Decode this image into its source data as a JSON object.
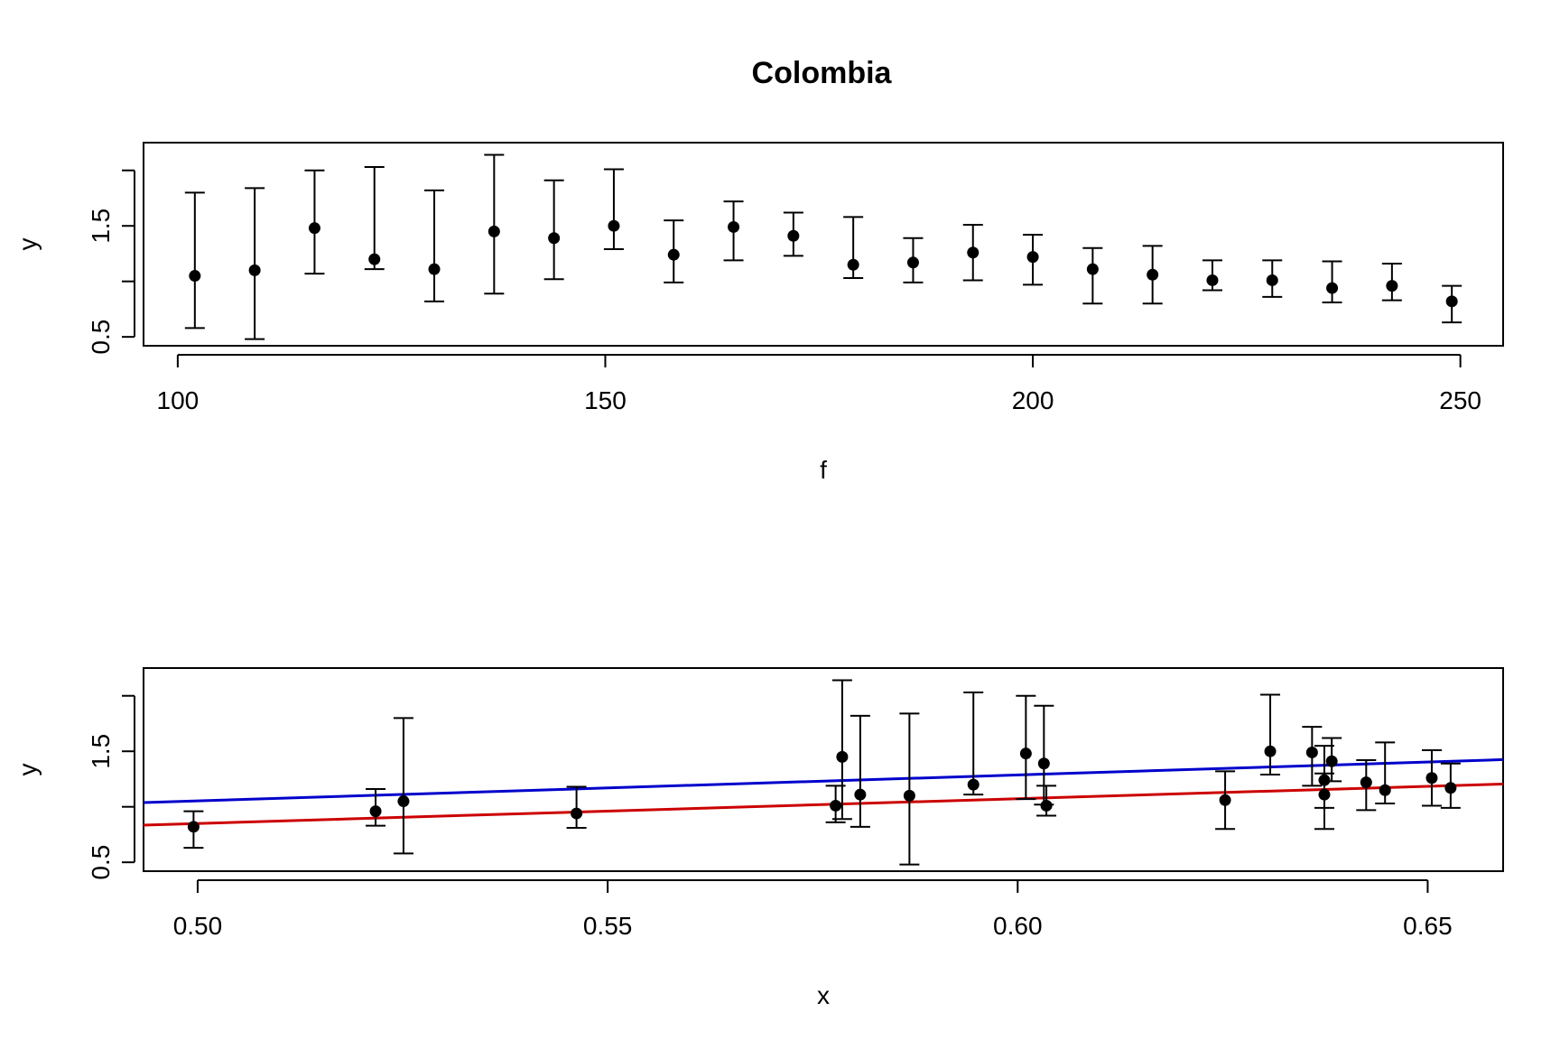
{
  "figure_title": "Colombia",
  "chart_data": [
    {
      "type": "scatter",
      "subtype": "errorbar",
      "xlabel": "f",
      "ylabel": "y",
      "xlim": [
        96,
        255
      ],
      "ylim": [
        0.42,
        2.25
      ],
      "xticks": [
        100,
        150,
        200,
        250
      ],
      "xtick_labels": [
        "100",
        "150",
        "200",
        "250"
      ],
      "yticks": [
        0.5,
        1.0,
        1.5,
        2.0
      ],
      "ytick_labels": [
        "0.5",
        "",
        "1.5",
        ""
      ],
      "grid": false,
      "points": [
        {
          "x": 102,
          "y": 1.05,
          "lo": 0.58,
          "hi": 1.8
        },
        {
          "x": 109,
          "y": 1.1,
          "lo": 0.48,
          "hi": 1.84
        },
        {
          "x": 116,
          "y": 1.48,
          "lo": 1.07,
          "hi": 2.0
        },
        {
          "x": 123,
          "y": 1.2,
          "lo": 1.11,
          "hi": 2.03
        },
        {
          "x": 130,
          "y": 1.11,
          "lo": 0.82,
          "hi": 1.82
        },
        {
          "x": 137,
          "y": 1.45,
          "lo": 0.89,
          "hi": 2.14
        },
        {
          "x": 144,
          "y": 1.39,
          "lo": 1.02,
          "hi": 1.91
        },
        {
          "x": 151,
          "y": 1.5,
          "lo": 1.29,
          "hi": 2.01
        },
        {
          "x": 158,
          "y": 1.24,
          "lo": 0.99,
          "hi": 1.55
        },
        {
          "x": 165,
          "y": 1.49,
          "lo": 1.19,
          "hi": 1.72
        },
        {
          "x": 172,
          "y": 1.41,
          "lo": 1.23,
          "hi": 1.62
        },
        {
          "x": 179,
          "y": 1.15,
          "lo": 1.03,
          "hi": 1.58
        },
        {
          "x": 186,
          "y": 1.17,
          "lo": 0.99,
          "hi": 1.39
        },
        {
          "x": 193,
          "y": 1.26,
          "lo": 1.01,
          "hi": 1.51
        },
        {
          "x": 200,
          "y": 1.22,
          "lo": 0.97,
          "hi": 1.42
        },
        {
          "x": 207,
          "y": 1.11,
          "lo": 0.8,
          "hi": 1.3
        },
        {
          "x": 214,
          "y": 1.06,
          "lo": 0.8,
          "hi": 1.32
        },
        {
          "x": 221,
          "y": 1.01,
          "lo": 0.92,
          "hi": 1.19
        },
        {
          "x": 228,
          "y": 1.01,
          "lo": 0.86,
          "hi": 1.19
        },
        {
          "x": 235,
          "y": 0.94,
          "lo": 0.81,
          "hi": 1.18
        },
        {
          "x": 242,
          "y": 0.96,
          "lo": 0.83,
          "hi": 1.16
        },
        {
          "x": 249,
          "y": 0.82,
          "lo": 0.63,
          "hi": 0.96
        }
      ]
    },
    {
      "type": "scatter",
      "subtype": "errorbar",
      "xlabel": "x",
      "ylabel": "y",
      "xlim": [
        0.4934,
        0.6592
      ],
      "ylim": [
        0.42,
        2.25
      ],
      "xticks": [
        0.5,
        0.55,
        0.6,
        0.65
      ],
      "xtick_labels": [
        "0.50",
        "0.55",
        "0.60",
        "0.65"
      ],
      "yticks": [
        0.5,
        1.0,
        1.5,
        2.0
      ],
      "ytick_labels": [
        "0.5",
        "",
        "1.5",
        ""
      ],
      "grid": false,
      "points": [
        {
          "x": 0.4995,
          "y": 0.82,
          "lo": 0.63,
          "hi": 0.96
        },
        {
          "x": 0.5217,
          "y": 0.96,
          "lo": 0.83,
          "hi": 1.16
        },
        {
          "x": 0.5251,
          "y": 1.05,
          "lo": 0.58,
          "hi": 1.8
        },
        {
          "x": 0.5462,
          "y": 0.94,
          "lo": 0.81,
          "hi": 1.18
        },
        {
          "x": 0.5778,
          "y": 1.01,
          "lo": 0.86,
          "hi": 1.19
        },
        {
          "x": 0.5786,
          "y": 1.45,
          "lo": 0.89,
          "hi": 2.14
        },
        {
          "x": 0.5808,
          "y": 1.11,
          "lo": 0.82,
          "hi": 1.82
        },
        {
          "x": 0.5868,
          "y": 1.1,
          "lo": 0.48,
          "hi": 1.84
        },
        {
          "x": 0.5946,
          "y": 1.2,
          "lo": 1.11,
          "hi": 2.03
        },
        {
          "x": 0.601,
          "y": 1.48,
          "lo": 1.07,
          "hi": 2.0
        },
        {
          "x": 0.6032,
          "y": 1.39,
          "lo": 1.02,
          "hi": 1.91
        },
        {
          "x": 0.6035,
          "y": 1.01,
          "lo": 0.92,
          "hi": 1.19
        },
        {
          "x": 0.6253,
          "y": 1.06,
          "lo": 0.8,
          "hi": 1.32
        },
        {
          "x": 0.6308,
          "y": 1.5,
          "lo": 1.29,
          "hi": 2.01
        },
        {
          "x": 0.6359,
          "y": 1.49,
          "lo": 1.19,
          "hi": 1.72
        },
        {
          "x": 0.6374,
          "y": 1.24,
          "lo": 0.99,
          "hi": 1.55
        },
        {
          "x": 0.6374,
          "y": 1.11,
          "lo": 0.8,
          "hi": 1.3
        },
        {
          "x": 0.6383,
          "y": 1.41,
          "lo": 1.23,
          "hi": 1.62
        },
        {
          "x": 0.6425,
          "y": 1.22,
          "lo": 0.97,
          "hi": 1.42
        },
        {
          "x": 0.6448,
          "y": 1.15,
          "lo": 1.03,
          "hi": 1.58
        },
        {
          "x": 0.6505,
          "y": 1.26,
          "lo": 1.01,
          "hi": 1.51
        },
        {
          "x": 0.6528,
          "y": 1.17,
          "lo": 0.99,
          "hi": 1.39
        }
      ],
      "lines": [
        {
          "color": "#0000cc",
          "x": [
            0.4934,
            0.6592
          ],
          "y": [
            1.038,
            1.425
          ]
        },
        {
          "color": "#cc0000",
          "x": [
            0.4934,
            0.6592
          ],
          "y": [
            0.835,
            1.205
          ]
        }
      ]
    }
  ]
}
